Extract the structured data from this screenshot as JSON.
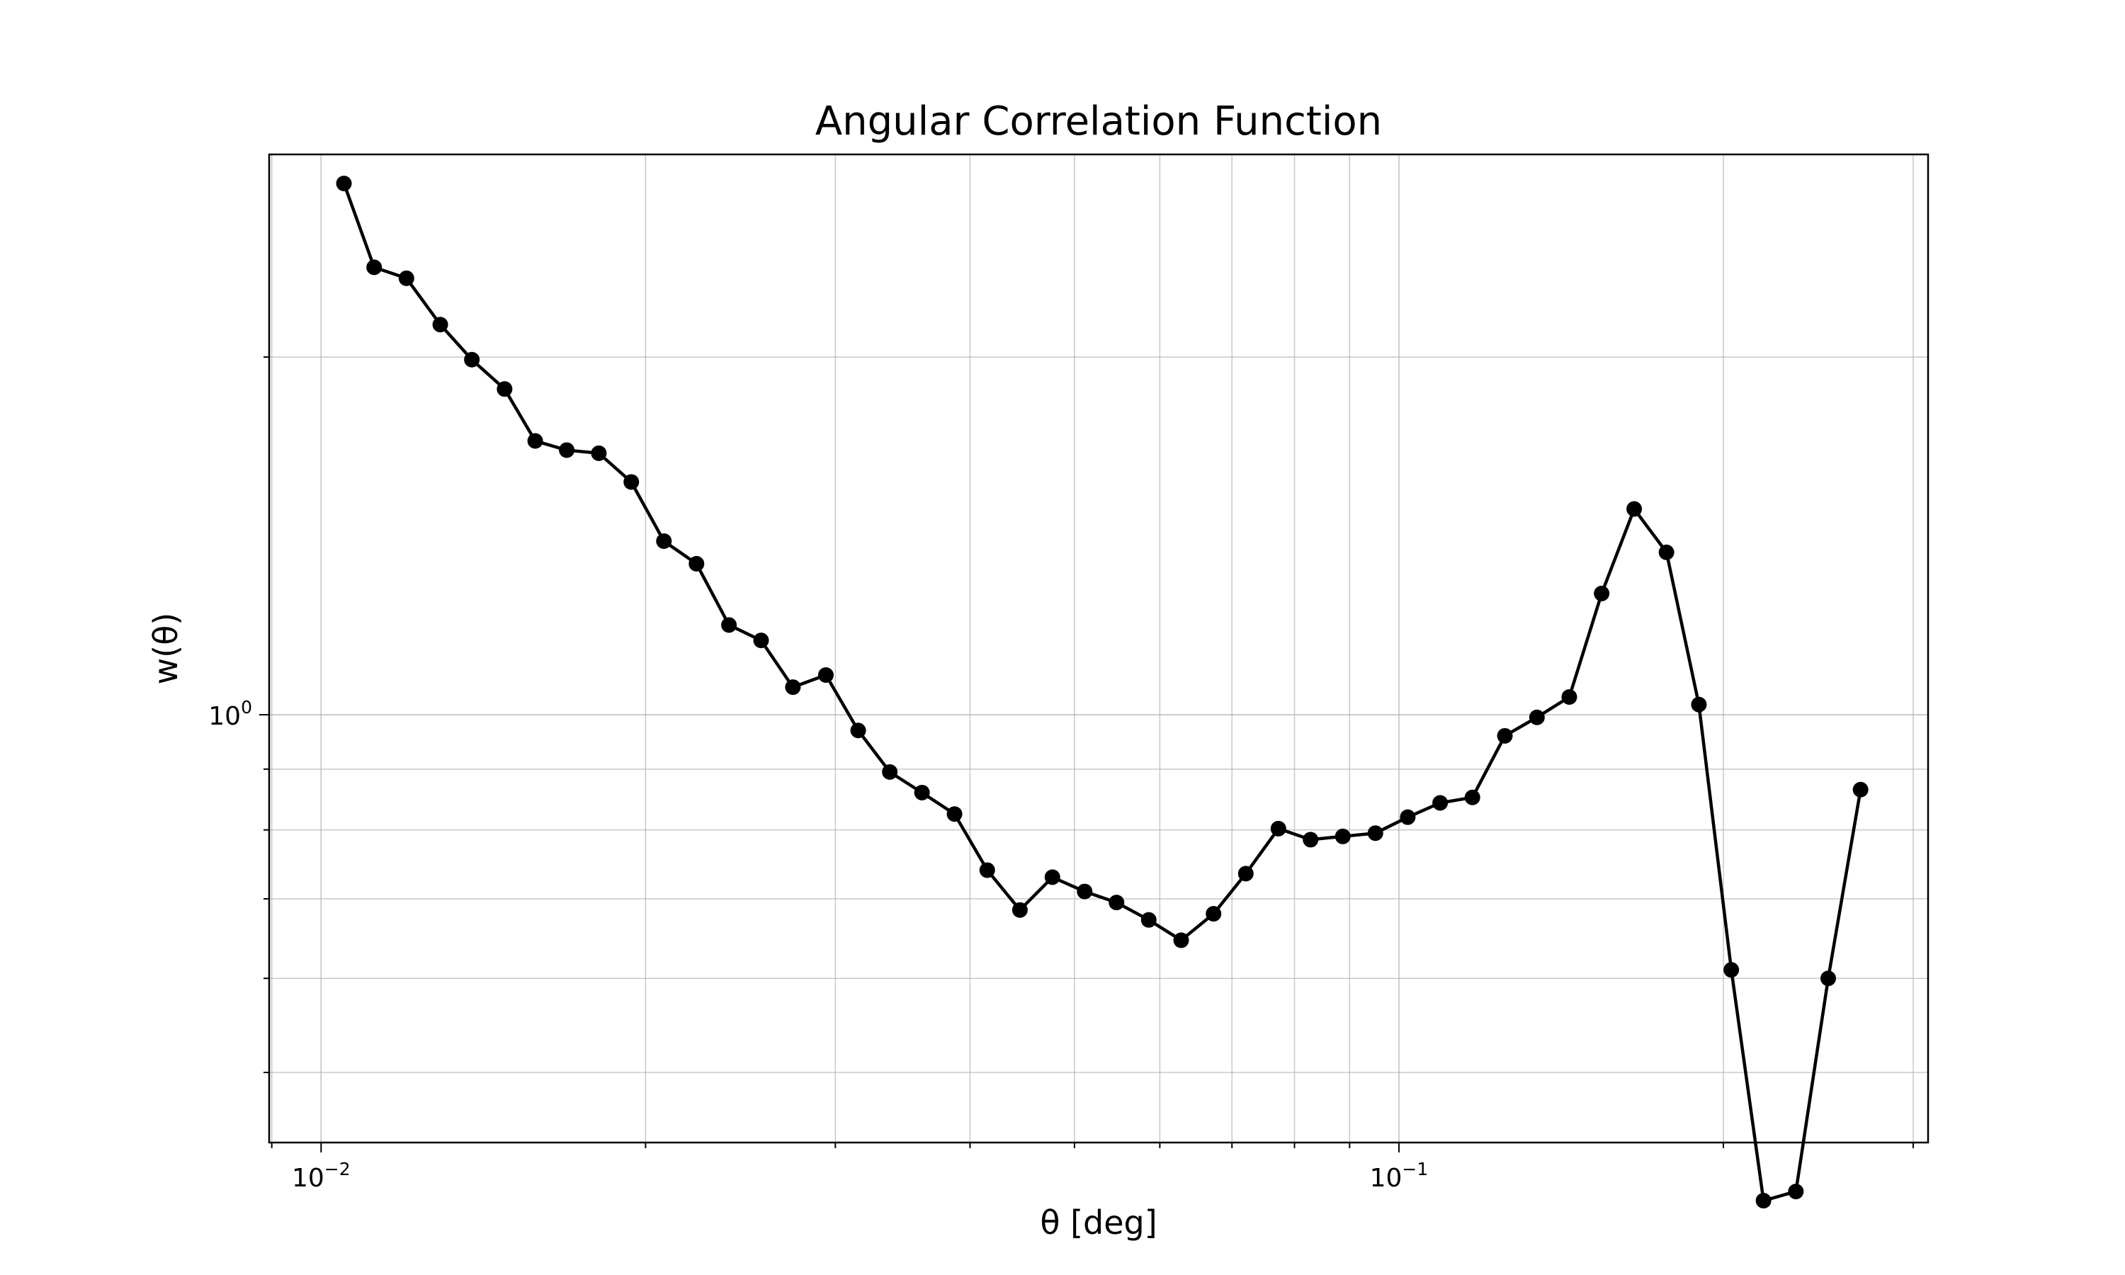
{
  "chart_data": {
    "type": "line",
    "title": "Angular Correlation Function",
    "xlabel": "θ [deg]",
    "ylabel": "w(θ)",
    "xscale": "log",
    "yscale": "log",
    "xlim": [
      0.00895,
      0.3097
    ],
    "ylim": [
      0.4365,
      2.962
    ],
    "grid": true,
    "x_ticks": [
      {
        "value": 0.01,
        "base": "10",
        "exp": "−2"
      },
      {
        "value": 0.1,
        "base": "10",
        "exp": "−1"
      }
    ],
    "y_ticks": [
      {
        "value": 1.0,
        "base": "10",
        "exp": "0"
      }
    ],
    "series": [
      {
        "color": "#000000",
        "marker": "circle",
        "x": [
          0.0105,
          0.0112,
          0.012,
          0.0129,
          0.0138,
          0.0148,
          0.0158,
          0.0169,
          0.0181,
          0.0194,
          0.0208,
          0.0223,
          0.0239,
          0.0256,
          0.0274,
          0.0294,
          0.0315,
          0.0337,
          0.0361,
          0.0387,
          0.0415,
          0.0445,
          0.0477,
          0.0511,
          0.0547,
          0.0586,
          0.0628,
          0.0673,
          0.0721,
          0.0773,
          0.0828,
          0.0887,
          0.0951,
          0.1019,
          0.1092,
          0.117,
          0.1254,
          0.1343,
          0.1439,
          0.1542,
          0.1653,
          0.1771,
          0.1898,
          0.2034,
          0.2179,
          0.2335,
          0.2502,
          0.2681
        ],
        "y": [
          2.8,
          2.38,
          2.33,
          2.13,
          1.99,
          1.88,
          1.7,
          1.67,
          1.66,
          1.57,
          1.4,
          1.34,
          1.19,
          1.155,
          1.055,
          1.08,
          0.97,
          0.895,
          0.86,
          0.825,
          0.74,
          0.685,
          0.73,
          0.71,
          0.695,
          0.672,
          0.646,
          0.68,
          0.735,
          0.802,
          0.785,
          0.79,
          0.795,
          0.82,
          0.843,
          0.852,
          0.96,
          0.995,
          1.035,
          1.265,
          1.49,
          1.37,
          1.02,
          0.61,
          0.39,
          0.397,
          0.6,
          0.865
        ]
      }
    ]
  }
}
